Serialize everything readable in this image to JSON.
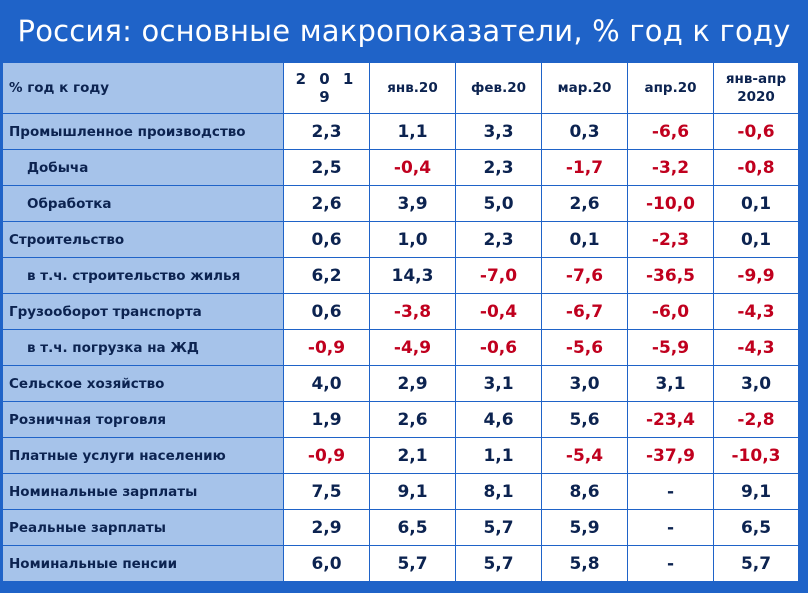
{
  "title": "Россия: основные макропоказатели, % год к году",
  "table": {
    "header": {
      "label": "% год к году",
      "columns": [
        "2 0 1 9",
        "янв.20",
        "фев.20",
        "мар.20",
        "апр.20",
        "янв-апр 2020"
      ]
    },
    "rows": [
      {
        "label": "Промышленное производство",
        "sub": false,
        "values": [
          "2,3",
          "1,1",
          "3,3",
          "0,3",
          "-6,6",
          "-0,6"
        ]
      },
      {
        "label": "Добыча",
        "sub": true,
        "values": [
          "2,5",
          "-0,4",
          "2,3",
          "-1,7",
          "-3,2",
          "-0,8"
        ]
      },
      {
        "label": "Обработка",
        "sub": true,
        "values": [
          "2,6",
          "3,9",
          "5,0",
          "2,6",
          "-10,0",
          "0,1"
        ]
      },
      {
        "label": "Строительство",
        "sub": false,
        "values": [
          "0,6",
          "1,0",
          "2,3",
          "0,1",
          "-2,3",
          "0,1"
        ]
      },
      {
        "label": "в т.ч. строительство жилья",
        "sub": true,
        "values": [
          "6,2",
          "14,3",
          "-7,0",
          "-7,6",
          "-36,5",
          "-9,9"
        ]
      },
      {
        "label": "Грузооборот транспорта",
        "sub": false,
        "values": [
          "0,6",
          "-3,8",
          "-0,4",
          "-6,7",
          "-6,0",
          "-4,3"
        ]
      },
      {
        "label": "в т.ч. погрузка на ЖД",
        "sub": true,
        "values": [
          "-0,9",
          "-4,9",
          "-0,6",
          "-5,6",
          "-5,9",
          "-4,3"
        ]
      },
      {
        "label": "Сельское хозяйство",
        "sub": false,
        "values": [
          "4,0",
          "2,9",
          "3,1",
          "3,0",
          "3,1",
          "3,0"
        ]
      },
      {
        "label": "Розничная торговля",
        "sub": false,
        "values": [
          "1,9",
          "2,6",
          "4,6",
          "5,6",
          "-23,4",
          "-2,8"
        ]
      },
      {
        "label": "Платные услуги населению",
        "sub": false,
        "values": [
          "-0,9",
          "2,1",
          "1,1",
          "-5,4",
          "-37,9",
          "-10,3"
        ]
      },
      {
        "label": "Номинальные зарплаты",
        "sub": false,
        "values": [
          "7,5",
          "9,1",
          "8,1",
          "8,6",
          "-",
          "9,1"
        ]
      },
      {
        "label": "Реальные зарплаты",
        "sub": false,
        "values": [
          "2,9",
          "6,5",
          "5,7",
          "5,9",
          "-",
          "6,5"
        ]
      },
      {
        "label": "Номинальные пенсии",
        "sub": false,
        "values": [
          "6,0",
          "5,7",
          "5,7",
          "5,8",
          "-",
          "5,7"
        ]
      }
    ],
    "colors": {
      "negative": "#c0001e",
      "positive": "#0c2350",
      "background": "#1f63c8",
      "label_cell": "#a6c3ea"
    }
  }
}
